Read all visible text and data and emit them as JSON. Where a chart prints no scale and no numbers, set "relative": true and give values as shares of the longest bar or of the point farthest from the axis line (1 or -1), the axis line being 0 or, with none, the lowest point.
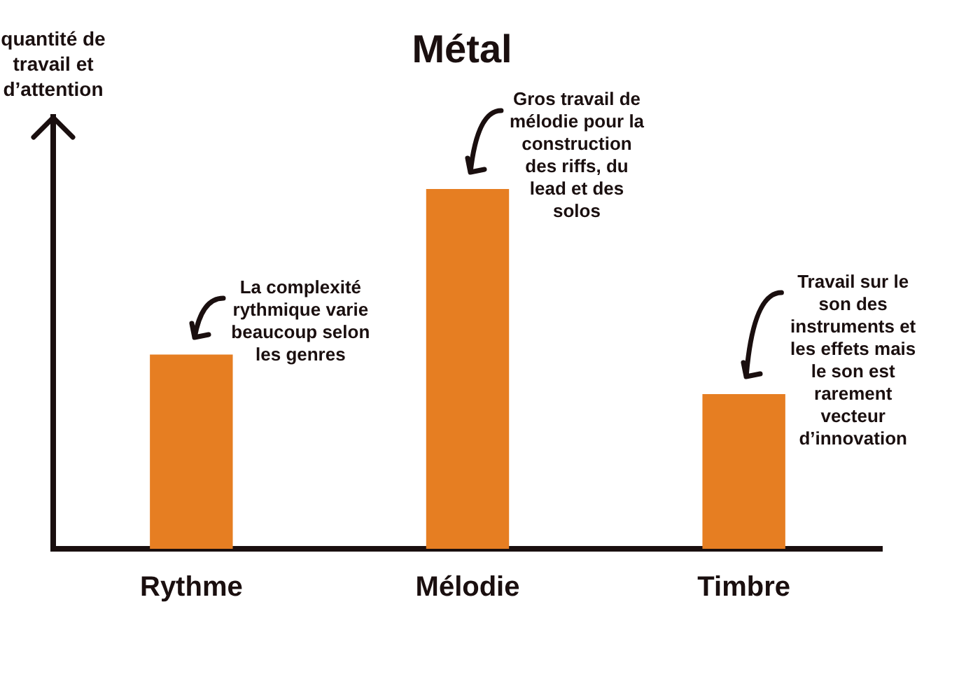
{
  "chart_data": {
    "type": "bar",
    "title": "Métal",
    "ylabel": "quantité de travail et d’attention",
    "categories": [
      "Rythme",
      "Mélodie",
      "Timbre"
    ],
    "values": [
      0.54,
      1,
      0.43
    ],
    "color": "#e67e22",
    "relative": true,
    "annotations": [
      {
        "text": "La complexité rythmique varie beaucoup selon les genres",
        "x": "Rythme",
        "y": 0.54
      },
      {
        "text": "Gros travail de mélodie pour la construction des riffs, du lead et des solos",
        "x": "Mélodie",
        "y": 1
      },
      {
        "text": "Travail sur le son des instruments et les effets mais le son est rarement vecteur d’innovation",
        "x": "Timbre",
        "y": 0.43
      }
    ]
  }
}
